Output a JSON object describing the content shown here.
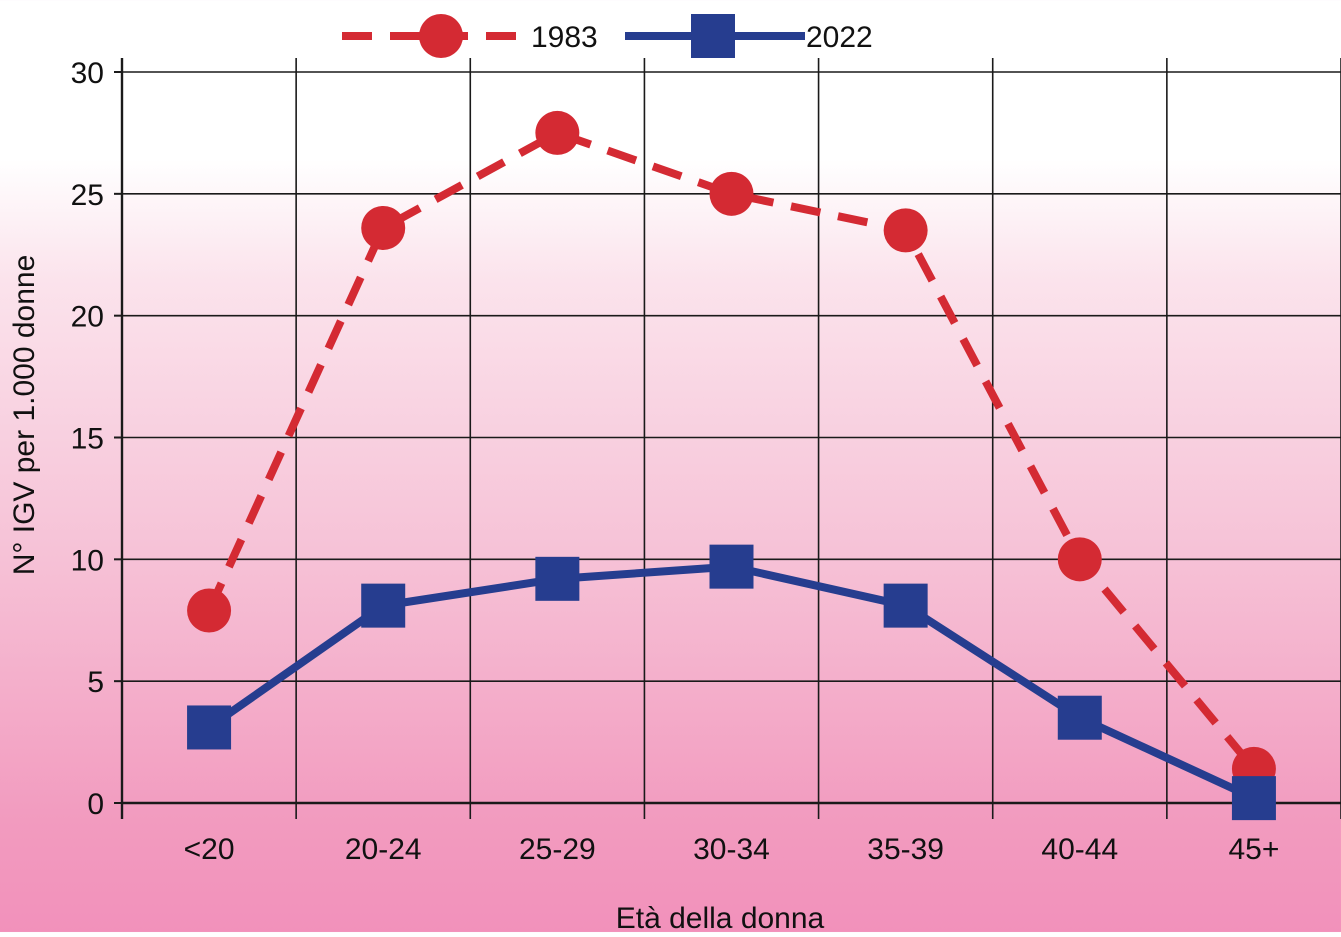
{
  "chart_data": {
    "type": "line",
    "title": "",
    "xlabel": "Età della donna",
    "ylabel": "N° IGV per 1.000 donne",
    "categories": [
      "<20",
      "20-24",
      "25-29",
      "30-34",
      "35-39",
      "40-44",
      "45+"
    ],
    "ylim": [
      0,
      30
    ],
    "yticks": [
      "0",
      "5",
      "10",
      "15",
      "20",
      "25",
      "30"
    ],
    "grid": true,
    "legend_position": "top",
    "series": [
      {
        "name": "1983",
        "values": [
          7.9,
          23.6,
          27.5,
          25.0,
          23.5,
          10.0,
          1.4
        ],
        "color": "#d42a33",
        "line_style": "dashed",
        "marker": "circle"
      },
      {
        "name": "2022",
        "values": [
          3.1,
          8.1,
          9.2,
          9.7,
          8.1,
          3.5,
          0.2
        ],
        "color": "#263d8f",
        "line_style": "solid",
        "marker": "square"
      }
    ]
  }
}
